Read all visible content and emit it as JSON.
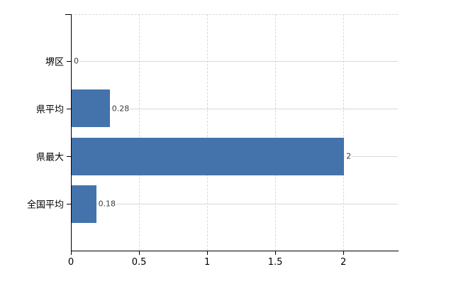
{
  "chart_data": {
    "type": "bar",
    "orientation": "horizontal",
    "categories": [
      "堺区",
      "県平均",
      "県最大",
      "全国平均"
    ],
    "values": [
      0,
      0.28,
      2,
      0.18
    ],
    "value_labels": [
      "0",
      "0.28",
      "2",
      "0.18"
    ],
    "x_ticks": [
      0,
      0.5,
      1,
      1.5,
      2
    ],
    "x_tick_labels": [
      "0",
      "0.5",
      "1",
      "1.5",
      "2"
    ],
    "xlim": [
      0,
      2.4
    ],
    "grid": true,
    "legend": false,
    "bar_color": "#4473ab",
    "gridline_color": "#d9d9d9",
    "axis_color": "#000000",
    "value_label_color": "#3c3c3c",
    "tick_label_color": "#000000",
    "background_color": "#ffffff"
  }
}
